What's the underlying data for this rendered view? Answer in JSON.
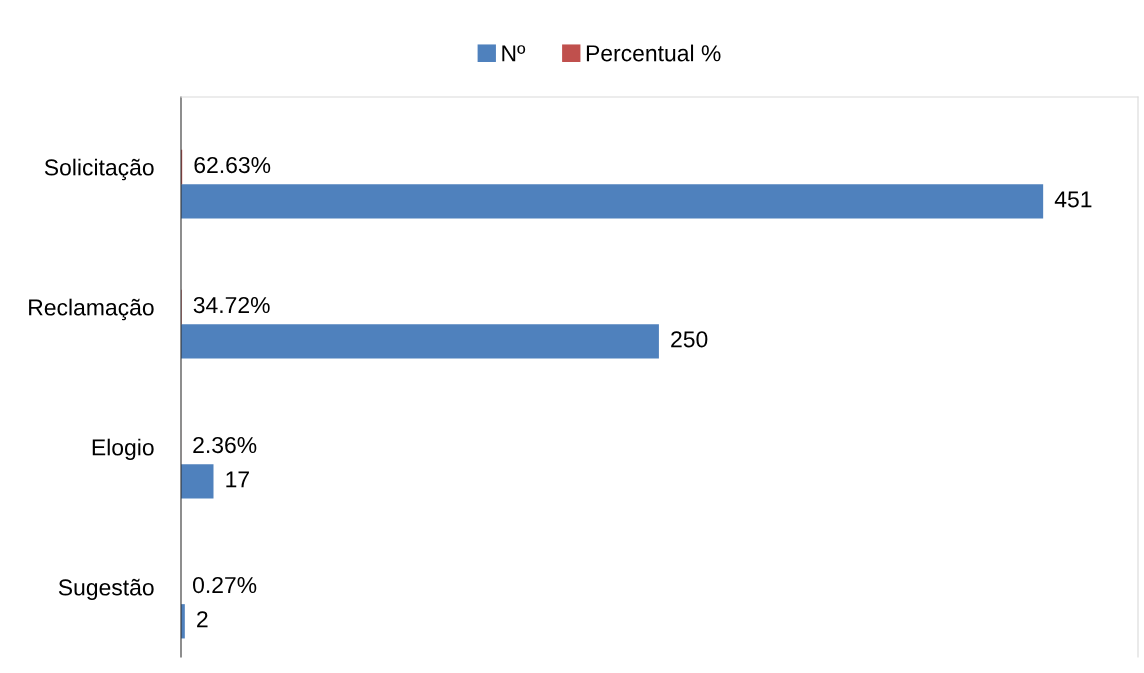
{
  "chart_data": {
    "type": "bar",
    "orientation": "horizontal",
    "categories": [
      "Solicitação",
      "Reclamação",
      "Elogio",
      "Sugestão"
    ],
    "series": [
      {
        "name": "Nº",
        "color": "#4f81bd",
        "values": [
          451,
          250,
          17,
          2
        ],
        "value_labels": [
          "451",
          "250",
          "17",
          "2"
        ]
      },
      {
        "name": "Percentual %",
        "color": "#c0504d",
        "values": [
          0.6263,
          0.3472,
          0.0236,
          0.0027
        ],
        "value_labels": [
          "62.63%",
          "34.72%",
          "2.36%",
          "0.27%"
        ]
      }
    ],
    "legend": "top",
    "tick_labels": "y",
    "grid": false
  }
}
